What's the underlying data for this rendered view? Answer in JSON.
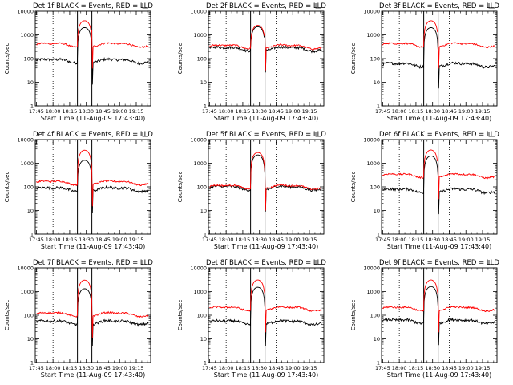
{
  "chart_data": {
    "type": "line",
    "yscale": "log",
    "ylim": [
      1,
      10000
    ],
    "ytick_labels": [
      "1",
      "10",
      "100",
      "1000",
      "10000"
    ],
    "xtick_labels": [
      "17:45",
      "18:00",
      "18:15",
      "18:30",
      "18:45",
      "19:00",
      "19:15"
    ],
    "xlabel": "Start Time (11-Aug-09 17:43:40)",
    "ylabel": "Counts/sec",
    "legend_text": "BLACK = Events, RED = LLD",
    "dotted_lines_at": [
      "18:00",
      "18:45"
    ],
    "solid_lines_at": [
      "18:22",
      "18:35"
    ],
    "colors": {
      "events": "#000000",
      "lld": "#ff0000"
    },
    "panels": [
      {
        "title": "Det  1f BLACK = Events, RED = LLD",
        "base_events": 80,
        "base_lld": 380,
        "peak_events": 2000,
        "peak_lld": 3800
      },
      {
        "title": "Det  2f BLACK = Events, RED = LLD",
        "base_events": 260,
        "base_lld": 320,
        "peak_events": 2100,
        "peak_lld": 2400
      },
      {
        "title": "Det  3f BLACK = Events, RED = LLD",
        "base_events": 55,
        "base_lld": 380,
        "peak_events": 2000,
        "peak_lld": 3800
      },
      {
        "title": "Det  4f BLACK = Events, RED = LLD",
        "base_events": 80,
        "base_lld": 150,
        "peak_events": 1300,
        "peak_lld": 3500
      },
      {
        "title": "Det  5f BLACK = Events, RED = LLD",
        "base_events": 90,
        "base_lld": 100,
        "peak_events": 2200,
        "peak_lld": 2800
      },
      {
        "title": "Det  6f BLACK = Events, RED = LLD",
        "base_events": 70,
        "base_lld": 300,
        "peak_events": 2000,
        "peak_lld": 3500
      },
      {
        "title": "Det  7f BLACK = Events, RED = LLD",
        "base_events": 50,
        "base_lld": 110,
        "peak_events": 1300,
        "peak_lld": 3000
      },
      {
        "title": "Det  8f BLACK = Events, RED = LLD",
        "base_events": 50,
        "base_lld": 190,
        "peak_events": 1500,
        "peak_lld": 3000
      },
      {
        "title": "Det  9f BLACK = Events, RED = LLD",
        "base_events": 55,
        "base_lld": 190,
        "peak_events": 1600,
        "peak_lld": 3000
      }
    ]
  }
}
